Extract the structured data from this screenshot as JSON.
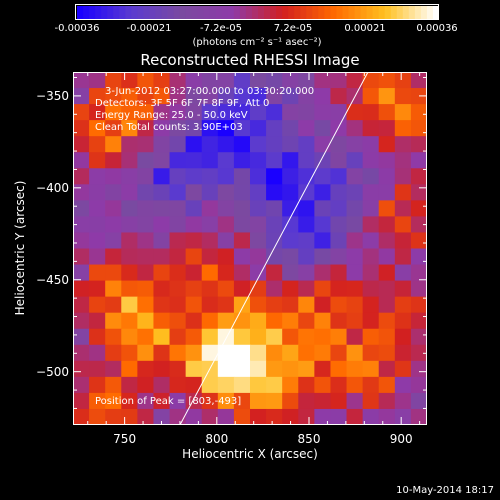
{
  "colorbar": {
    "tick_labels": [
      "-0.00036",
      "-0.00021",
      "-7.2e-05",
      "7.2e-05",
      "0.00021",
      "0.00036"
    ],
    "unit": "(photons cm⁻² s⁻¹ asec⁻²)",
    "colors": [
      "#1a00ff",
      "#5a3ad0",
      "#7a4aa0",
      "#8e3aa8",
      "#d22020",
      "#ff6a00",
      "#ffc020",
      "#ffffff"
    ]
  },
  "chart_data": {
    "type": "heatmap",
    "title": "Reconstructed RHESSI Image",
    "xlabel": "Heliocentric X (arcsec)",
    "ylabel": "Heliocentric Y (arcsec)",
    "xlim": [
      722,
      914
    ],
    "ylim": [
      -529,
      -337
    ],
    "x_ticks": [
      750,
      800,
      850,
      900
    ],
    "y_ticks": [
      -350,
      -400,
      -450,
      -500
    ],
    "annotations": [
      "3-Jun-2012 03:27:00.000 to 03:30:20.000",
      "Detectors: 3F 5F 6F 7F 8F 9F, Att 0",
      "Energy Range: 25.0 - 50.0 keV",
      "Clean     Total counts: 3.90E+03"
    ],
    "peak_label": "Position of Peak = [803,-493]",
    "peak": [
      803,
      -493
    ],
    "limb_line": [
      [
        780,
        -529
      ],
      [
        882,
        -337
      ]
    ],
    "colorbar_range": [
      -0.00036,
      0.00036
    ],
    "grid_size": [
      22,
      22
    ],
    "hot_spots": [
      {
        "x": 803,
        "y": -495,
        "amp": 1.0
      },
      {
        "x": 760,
        "y": -480,
        "amp": 0.6
      },
      {
        "x": 745,
        "y": -455,
        "amp": 0.45
      },
      {
        "x": 790,
        "y": -445,
        "amp": 0.4
      },
      {
        "x": 830,
        "y": -510,
        "amp": 0.55
      },
      {
        "x": 880,
        "y": -500,
        "amp": 0.5
      },
      {
        "x": 900,
        "y": -470,
        "amp": 0.35
      },
      {
        "x": 860,
        "y": -455,
        "amp": 0.4
      },
      {
        "x": 740,
        "y": -370,
        "amp": 0.5
      },
      {
        "x": 760,
        "y": -345,
        "amp": 0.45
      },
      {
        "x": 905,
        "y": -360,
        "amp": 0.45
      },
      {
        "x": 900,
        "y": -415,
        "amp": 0.4
      },
      {
        "x": 885,
        "y": -345,
        "amp": 0.35
      },
      {
        "x": 740,
        "y": -520,
        "amp": 0.5
      },
      {
        "x": 820,
        "y": -470,
        "amp": 0.45
      },
      {
        "x": 850,
        "y": -485,
        "amp": 0.4
      }
    ],
    "cold_spots": [
      {
        "x": 800,
        "y": -375,
        "amp": 0.5
      },
      {
        "x": 835,
        "y": -395,
        "amp": 0.55
      },
      {
        "x": 850,
        "y": -430,
        "amp": 0.5
      },
      {
        "x": 775,
        "y": -395,
        "amp": 0.35
      },
      {
        "x": 820,
        "y": -355,
        "amp": 0.35
      },
      {
        "x": 870,
        "y": -400,
        "amp": 0.3
      }
    ]
  },
  "timestamp": "10-May-2014 18:17"
}
